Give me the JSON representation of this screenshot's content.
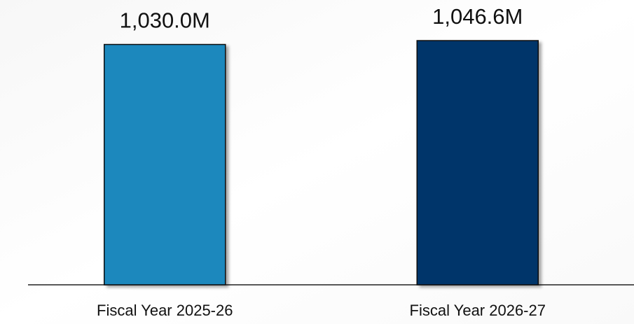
{
  "chart_data": {
    "type": "bar",
    "categories": [
      "Fiscal Year 2025-26",
      "Fiscal Year 2026-27"
    ],
    "values": [
      1030.0,
      1046.6
    ],
    "value_labels": [
      "1,030.0M",
      "1,046.6M"
    ],
    "colors": [
      "#1f88bd",
      "#04356b"
    ]
  }
}
